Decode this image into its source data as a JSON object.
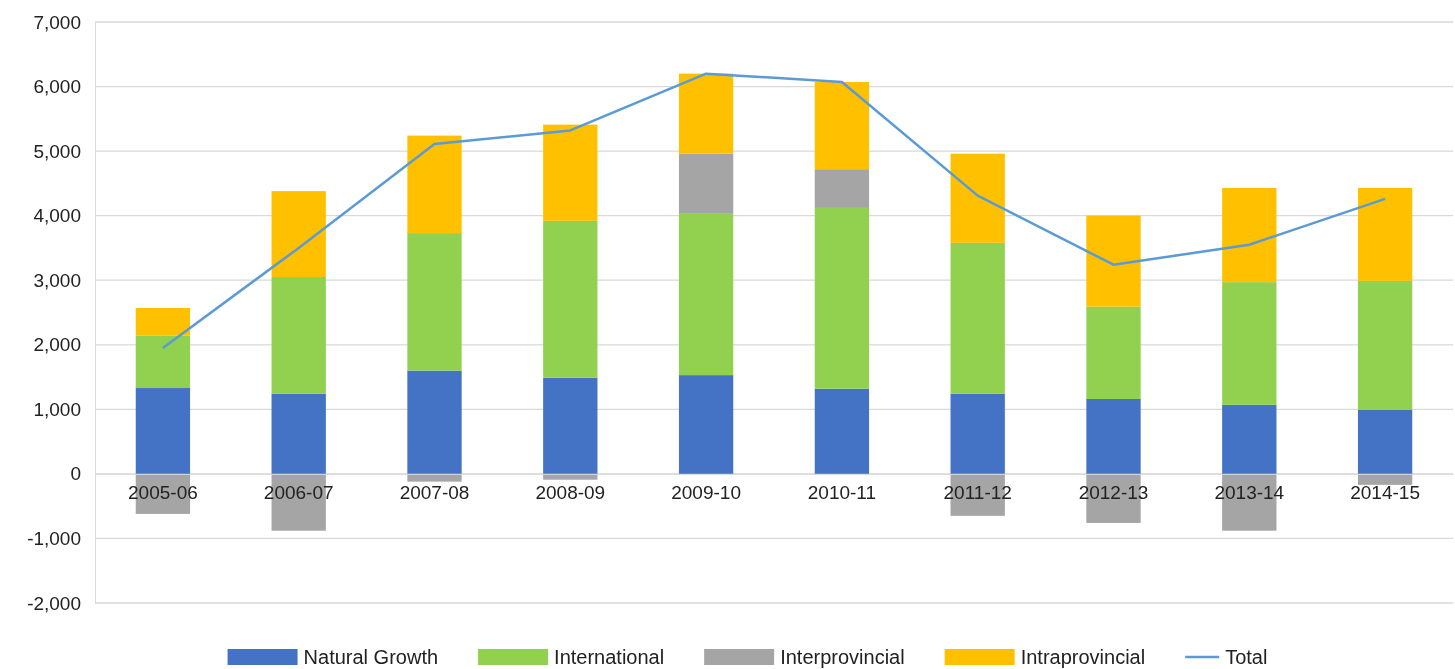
{
  "chart_data": {
    "type": "bar",
    "stacked": true,
    "categories": [
      "2005-06",
      "2006-07",
      "2007-08",
      "2008-09",
      "2009-10",
      "2010-11",
      "2011-12",
      "2012-13",
      "2013-14",
      "2014-15"
    ],
    "series": [
      {
        "name": "Natural Growth",
        "color": "#4472c4",
        "values": [
          1330,
          1240,
          1600,
          1490,
          1530,
          1320,
          1240,
          1160,
          1070,
          990
        ]
      },
      {
        "name": "International",
        "color": "#92d050",
        "values": [
          810,
          1810,
          2130,
          2430,
          2510,
          2800,
          2340,
          1430,
          1900,
          2000
        ]
      },
      {
        "name": "Interprovincial",
        "color": "#a5a5a5",
        "values": [
          -620,
          -880,
          -120,
          -90,
          920,
          600,
          -650,
          -760,
          -880,
          -170
        ]
      },
      {
        "name": "Intraprovincial",
        "color": "#ffc000",
        "values": [
          430,
          1330,
          1510,
          1490,
          1240,
          1350,
          1380,
          1410,
          1460,
          1440
        ]
      },
      {
        "name": "Total",
        "type": "line",
        "color": "#5b9bd5",
        "values": [
          1950,
          3500,
          5110,
          5320,
          6200,
          6070,
          4310,
          3240,
          3550,
          4260
        ]
      }
    ],
    "ylim": [
      -2000,
      7000
    ],
    "yticks": [
      {
        "value": -2000,
        "label": "-2,000"
      },
      {
        "value": -1000,
        "label": "-1,000"
      },
      0,
      {
        "value": 1000,
        "label": "1,000"
      },
      {
        "value": 2000,
        "label": "2,000"
      },
      {
        "value": 3000,
        "label": "3,000"
      },
      {
        "value": 4000,
        "label": "4,000"
      },
      {
        "value": 5000,
        "label": "5,000"
      },
      {
        "value": 6000,
        "label": "6,000"
      },
      {
        "value": 7000,
        "label": "7,000"
      }
    ],
    "grid": "y",
    "legend": "bottom",
    "marker": "none"
  }
}
